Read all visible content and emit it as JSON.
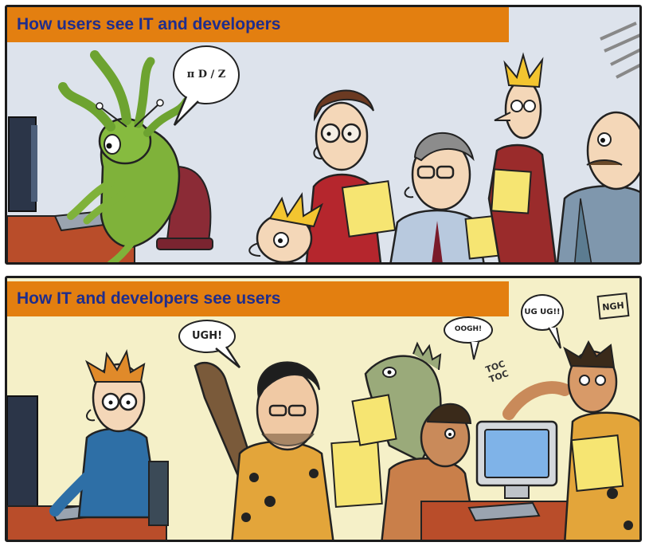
{
  "panels": [
    {
      "banner": "How users see IT and developers",
      "balloons": [
        {
          "text": "π D ∕ Z"
        }
      ],
      "accent": "#e37f10",
      "title_color": "#1f2d8c",
      "background": "#dde3ec"
    },
    {
      "banner": "How IT and developers see users",
      "balloons": [
        {
          "text": "UGH!"
        },
        {
          "text": "OOGH!"
        },
        {
          "text": "UG UG!!"
        }
      ],
      "sfx": "TOC TOC",
      "signature": "NGH",
      "background": "#f5f0c8"
    }
  ]
}
